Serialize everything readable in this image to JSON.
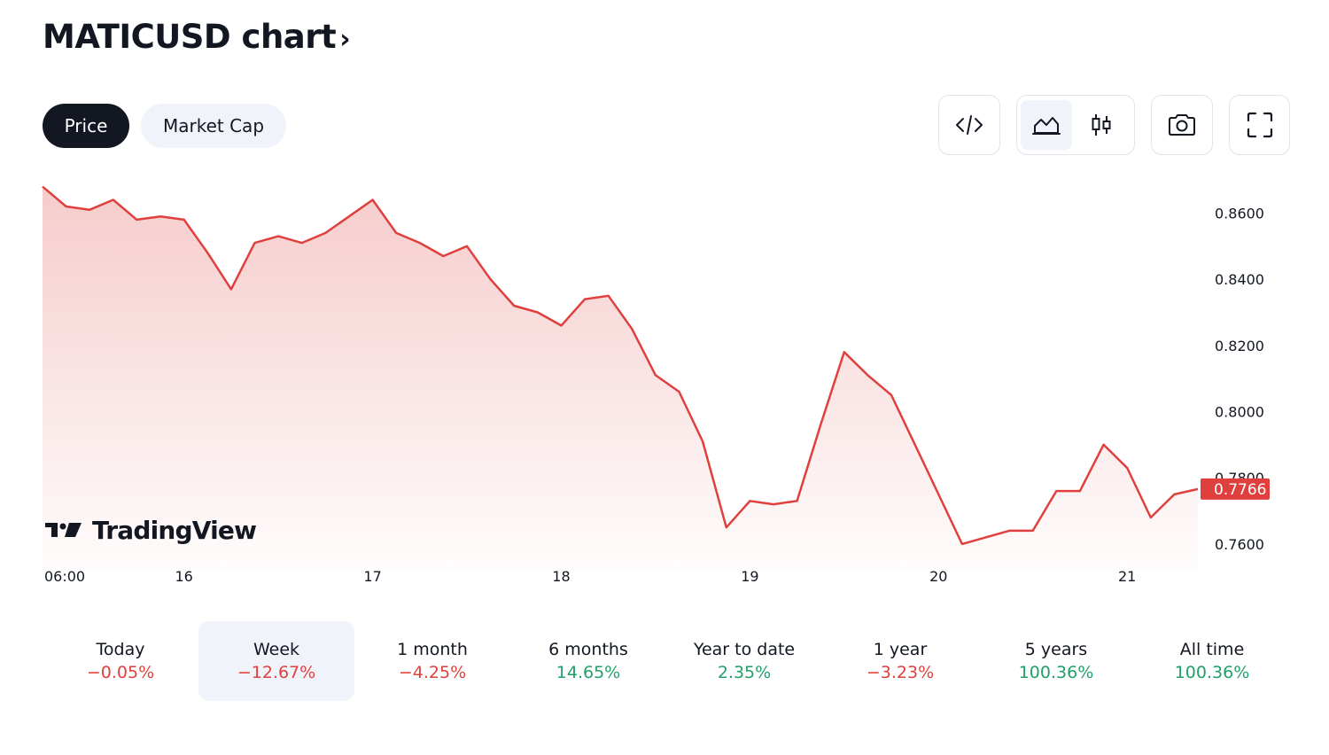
{
  "title": "MATICUSD chart",
  "title_chevron": "›",
  "toggle": {
    "price_label": "Price",
    "market_cap_label": "Market Cap",
    "active": "price"
  },
  "toolbar": {
    "icons": [
      "embed-code-icon",
      "area-chart-icon",
      "candlestick-icon",
      "camera-icon",
      "fullscreen-icon"
    ],
    "selected_chart_style": "area"
  },
  "chart_data": {
    "type": "area",
    "title": "",
    "xlabel": "",
    "ylabel": "",
    "ylim": [
      0.753,
      0.8695
    ],
    "y_ticks": [
      "0.7600",
      "0.7800",
      "0.8000",
      "0.8200",
      "0.8400",
      "0.8600"
    ],
    "x_tick_labels": [
      "06:00",
      "16",
      "17",
      "18",
      "19",
      "20",
      "21"
    ],
    "last_price": "0.7766",
    "colors": {
      "line": "#e0403d",
      "fill_top": "#f5c6c6",
      "badge": "#e0403d"
    },
    "logo_text": "TradingView",
    "series": [
      {
        "x": [
          "15 06:00",
          "15 09:00",
          "15 12:00",
          "15 15:00",
          "15 18:00",
          "15 21:00",
          "16 00:00",
          "16 03:00",
          "16 06:00",
          "16 09:00",
          "16 12:00",
          "16 15:00",
          "16 18:00",
          "16 21:00",
          "17 00:00",
          "17 03:00",
          "17 06:00",
          "17 09:00",
          "17 12:00",
          "17 15:00",
          "17 18:00",
          "17 21:00",
          "18 00:00",
          "18 03:00",
          "18 06:00",
          "18 09:00",
          "18 12:00",
          "18 15:00",
          "18 18:00",
          "18 21:00",
          "19 00:00",
          "19 03:00",
          "19 06:00",
          "19 09:00",
          "19 12:00",
          "19 15:00",
          "19 18:00",
          "19 21:00",
          "20 00:00",
          "20 03:00",
          "20 06:00",
          "20 09:00",
          "20 12:00",
          "20 15:00",
          "20 18:00",
          "20 21:00",
          "21 00:00",
          "21 03:00",
          "21 06:00",
          "21 09:00"
        ],
        "values": [
          0.868,
          0.862,
          0.861,
          0.864,
          0.858,
          0.859,
          0.858,
          0.848,
          0.837,
          0.851,
          0.853,
          0.851,
          0.854,
          0.859,
          0.864,
          0.854,
          0.851,
          0.847,
          0.85,
          0.84,
          0.832,
          0.83,
          0.826,
          0.834,
          0.835,
          0.825,
          0.811,
          0.806,
          0.791,
          0.765,
          0.773,
          0.772,
          0.773,
          0.796,
          0.818,
          0.811,
          0.805,
          0.79,
          0.775,
          0.76,
          0.762,
          0.764,
          0.764,
          0.776,
          0.776,
          0.79,
          0.783,
          0.768,
          0.775,
          0.7766
        ]
      }
    ]
  },
  "periods": [
    {
      "label": "Today",
      "change": "−0.05%",
      "trend": "neg"
    },
    {
      "label": "Week",
      "change": "−12.67%",
      "trend": "neg",
      "selected": true
    },
    {
      "label": "1 month",
      "change": "−4.25%",
      "trend": "neg"
    },
    {
      "label": "6 months",
      "change": "14.65%",
      "trend": "pos"
    },
    {
      "label": "Year to date",
      "change": "2.35%",
      "trend": "pos"
    },
    {
      "label": "1 year",
      "change": "−3.23%",
      "trend": "neg"
    },
    {
      "label": "5 years",
      "change": "100.36%",
      "trend": "pos"
    },
    {
      "label": "All time",
      "change": "100.36%",
      "trend": "pos"
    }
  ]
}
